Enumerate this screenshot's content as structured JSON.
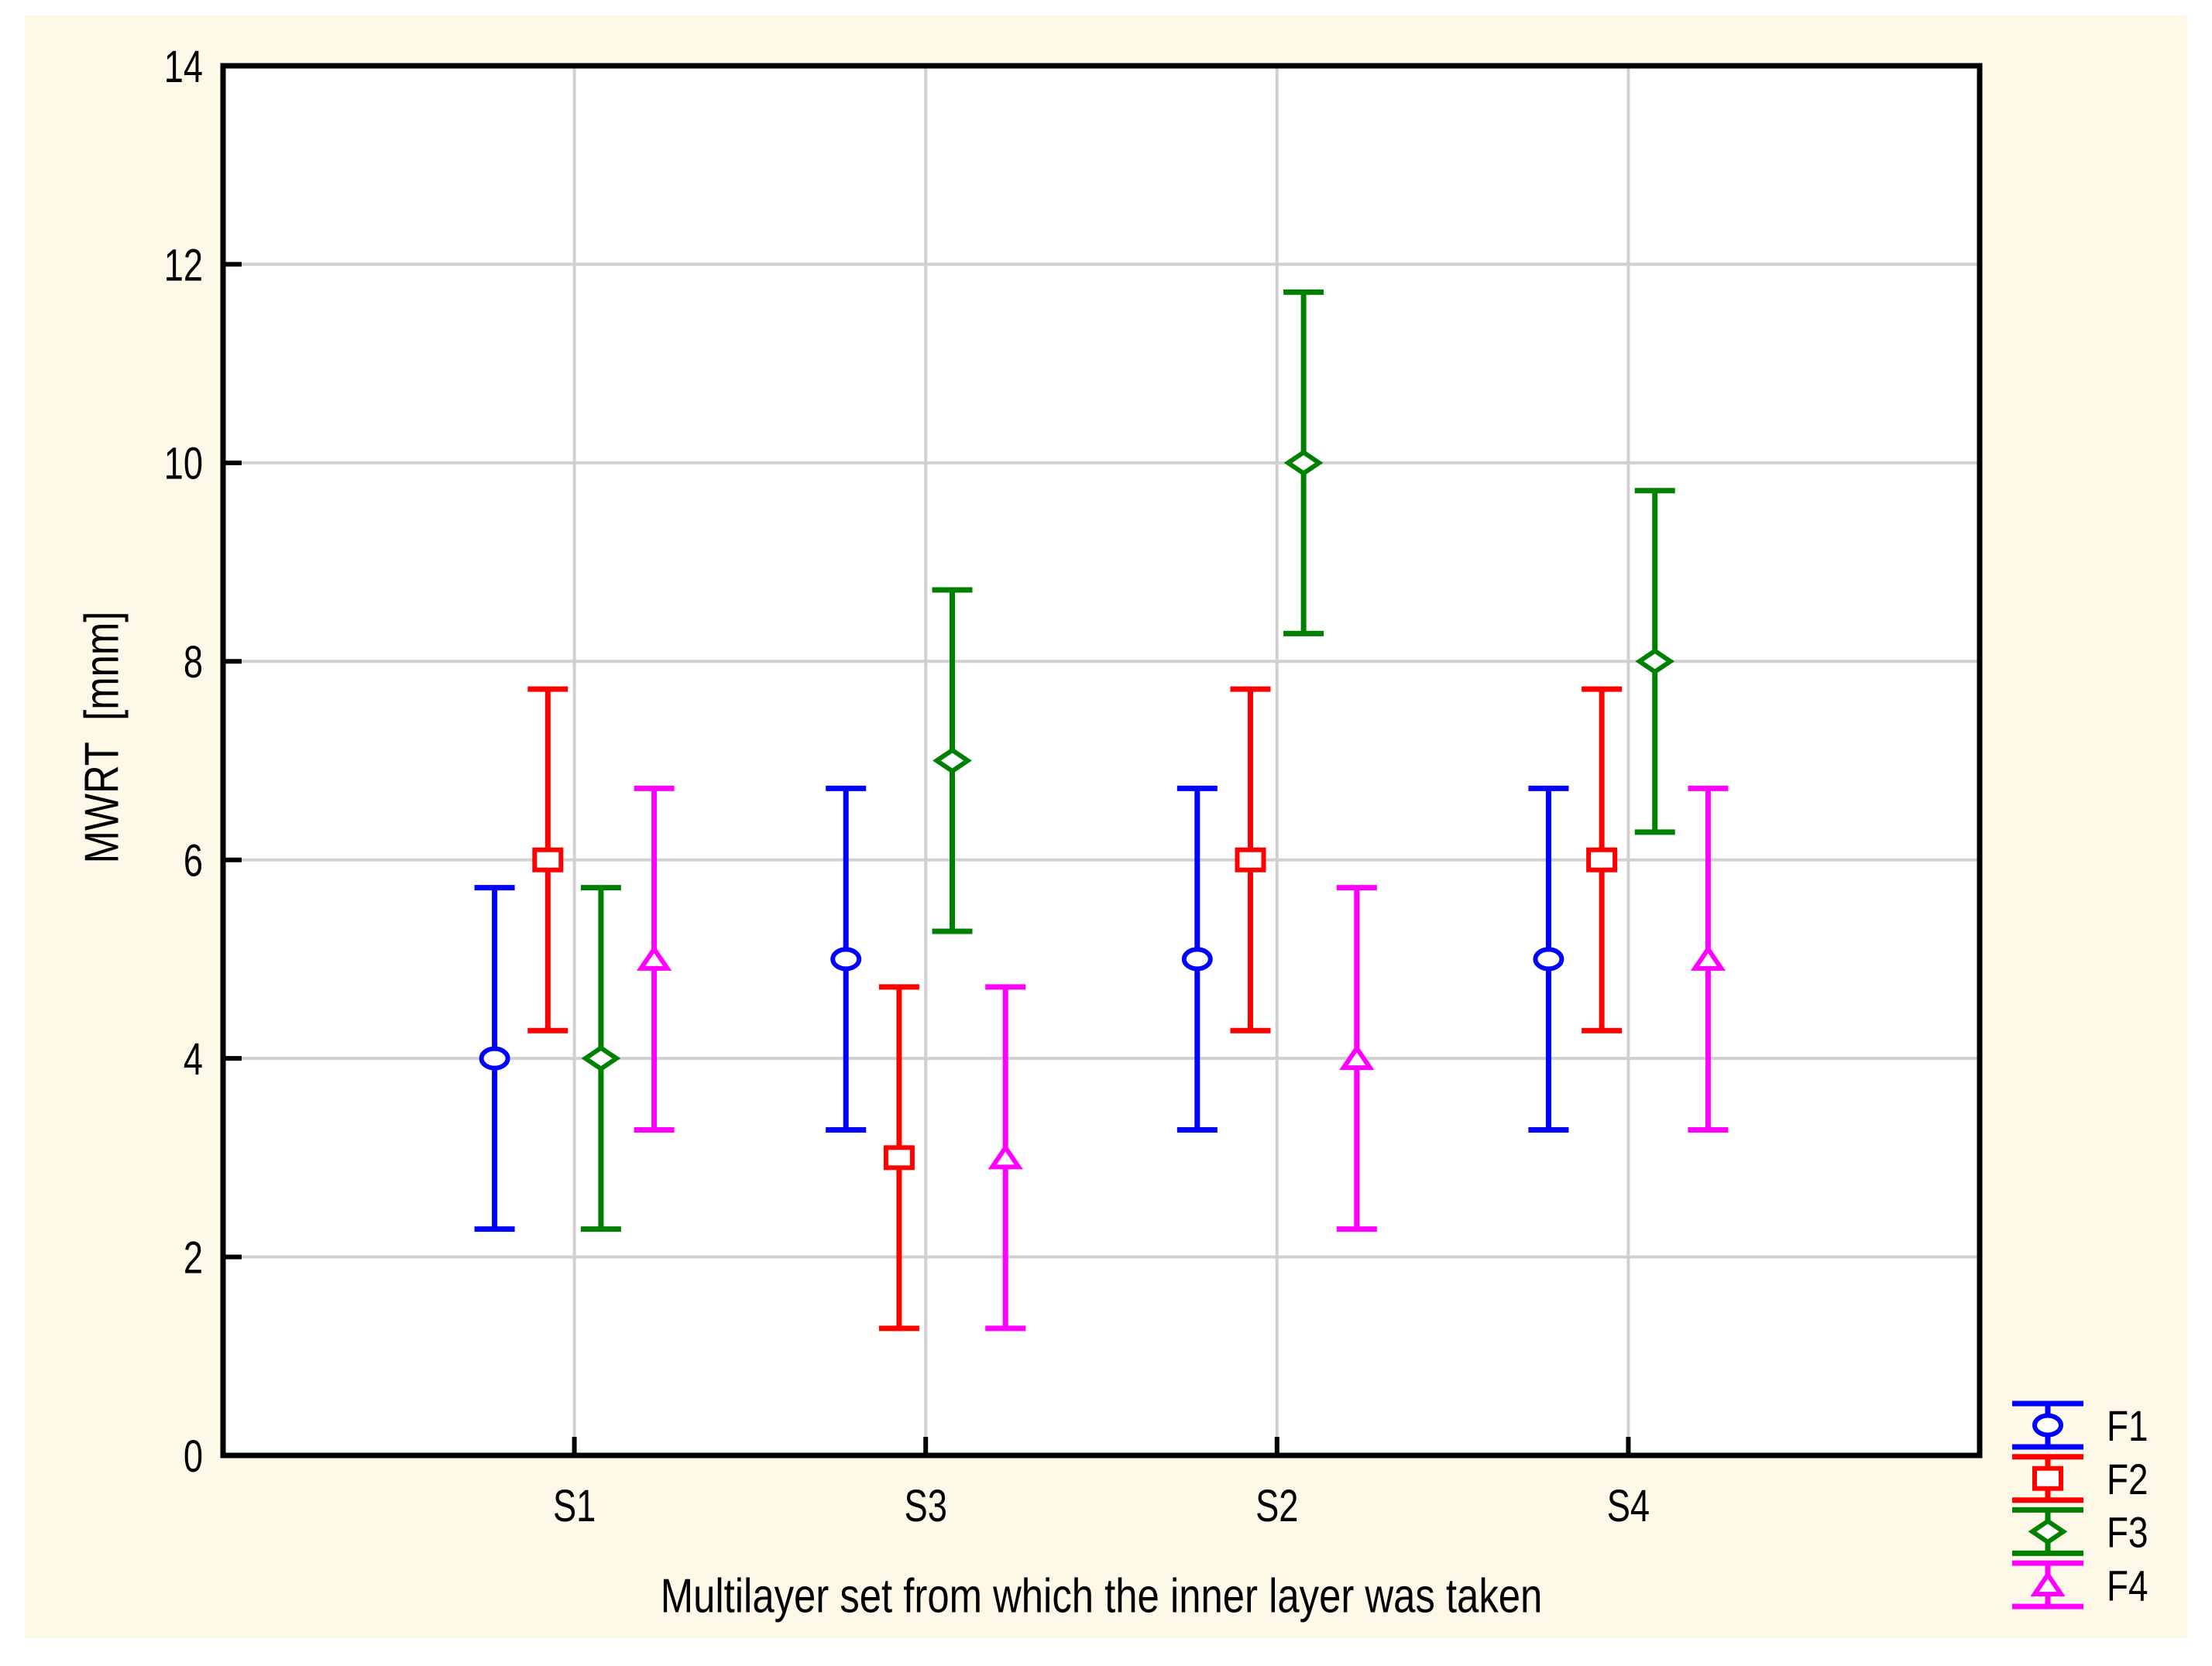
{
  "chart_data": {
    "type": "scatter",
    "subtype": "means-with-error-bars",
    "title": "",
    "xlabel": "Multilayer set from which the inner layer was taken",
    "ylabel": "MWRT  [mnm]",
    "categories": [
      "S1",
      "S3",
      "S2",
      "S4"
    ],
    "ylim": [
      0,
      14
    ],
    "yticks": [
      0,
      2,
      4,
      6,
      8,
      10,
      12,
      14
    ],
    "ytick_labels": [
      "0",
      "2",
      "4",
      "6",
      "8",
      "10",
      "12",
      "14"
    ],
    "grid": "on",
    "legend_position": "bottom-right-outside",
    "ci_halfwidth": 1.72,
    "series": [
      {
        "name": "F1",
        "marker": "circle",
        "color": "#0000FF",
        "means": [
          4,
          5,
          5,
          5
        ],
        "lower": [
          2.28,
          3.28,
          3.28,
          3.28
        ],
        "upper": [
          5.72,
          6.72,
          6.72,
          6.72
        ]
      },
      {
        "name": "F2",
        "marker": "square",
        "color": "#FF0000",
        "means": [
          6,
          3,
          6,
          6
        ],
        "lower": [
          4.28,
          1.28,
          4.28,
          4.28
        ],
        "upper": [
          7.72,
          4.72,
          7.72,
          7.72
        ]
      },
      {
        "name": "F3",
        "marker": "diamond",
        "color": "#008000",
        "means": [
          4,
          7,
          10,
          8
        ],
        "lower": [
          2.28,
          5.28,
          8.28,
          6.28
        ],
        "upper": [
          5.72,
          8.72,
          11.72,
          9.72
        ]
      },
      {
        "name": "F4",
        "marker": "triangle",
        "color": "#FF00FF",
        "means": [
          5,
          3,
          4,
          5
        ],
        "lower": [
          3.28,
          1.28,
          2.28,
          3.28
        ],
        "upper": [
          6.72,
          4.72,
          5.72,
          6.72
        ]
      }
    ],
    "colors": {
      "page_background": "#FFFFFF",
      "figure_background": "#FDF8E7",
      "plot_background": "#FFFFFF",
      "gridline": "#D0D0D0",
      "axis": "#000000",
      "text": "#000000"
    }
  }
}
